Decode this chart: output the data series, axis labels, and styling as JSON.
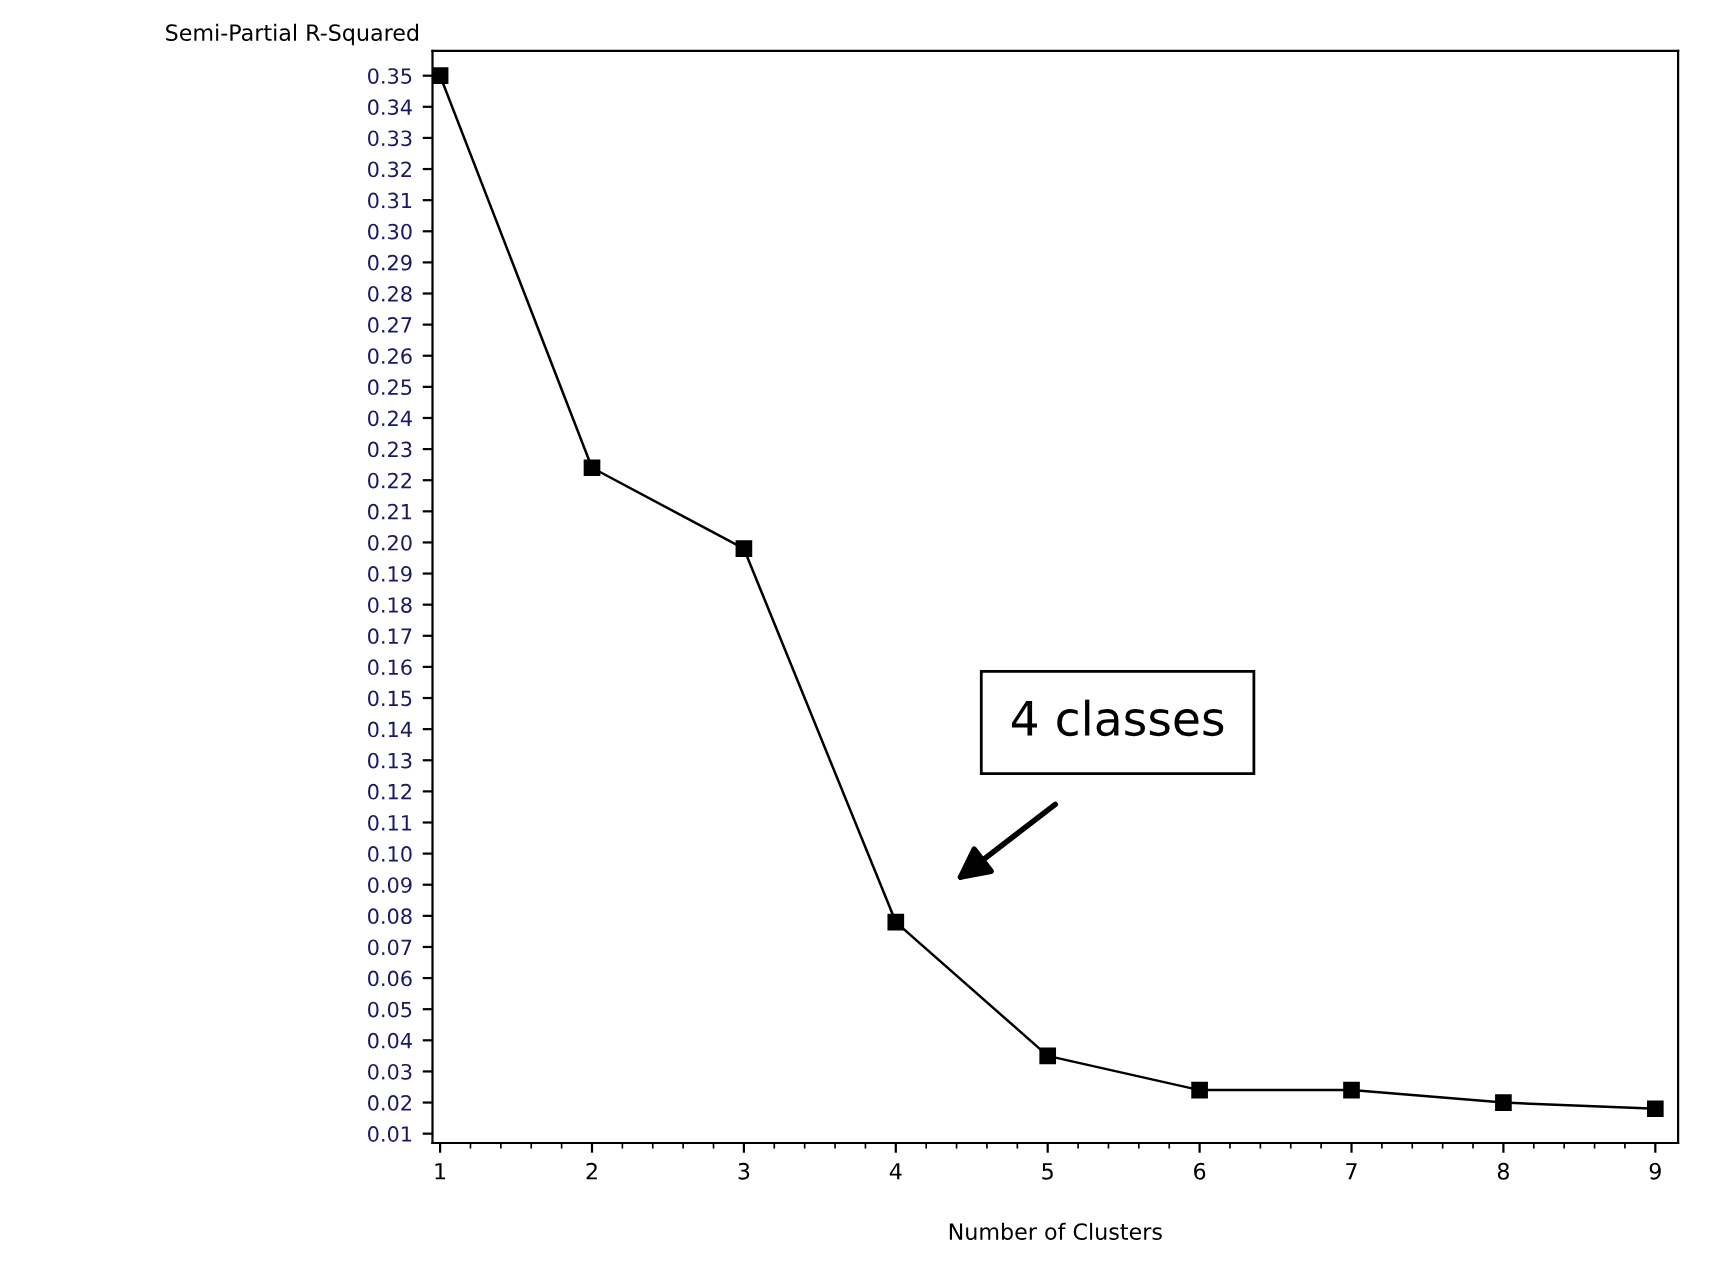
{
  "chart_data": {
    "type": "line",
    "xlabel": "Number of Clusters",
    "ylabel": "Semi-Partial R-Squared",
    "x": [
      1,
      2,
      3,
      4,
      5,
      6,
      7,
      8,
      9
    ],
    "series": [
      {
        "color": "#000000",
        "values": [
          0.35,
          0.224,
          0.198,
          0.078,
          0.035,
          0.024,
          0.024,
          0.02,
          0.018
        ]
      }
    ],
    "marker": "square",
    "line_style": "solid",
    "xlim": [
      0.95,
      9.15
    ],
    "xticks": [
      1,
      2,
      3,
      4,
      5,
      6,
      7,
      8,
      9
    ],
    "ylim": [
      0.007,
      0.358
    ],
    "yticks": [
      0.01,
      0.02,
      0.03,
      0.04,
      0.05,
      0.06,
      0.07,
      0.08,
      0.09,
      {
        "value": 0.1,
        "label": "0.10"
      },
      0.11,
      0.12,
      0.13,
      0.14,
      0.15,
      0.16,
      0.17,
      0.18,
      0.19,
      {
        "value": 0.2,
        "label": "0.20"
      },
      0.21,
      0.22,
      0.23,
      0.24,
      0.25,
      0.26,
      0.27,
      0.28,
      0.29,
      {
        "value": 0.3,
        "label": "0.30"
      },
      0.31,
      0.32,
      0.33,
      0.34,
      0.35
    ],
    "annotations": [
      "4 classes"
    ],
    "grid": false,
    "legend": false
  }
}
